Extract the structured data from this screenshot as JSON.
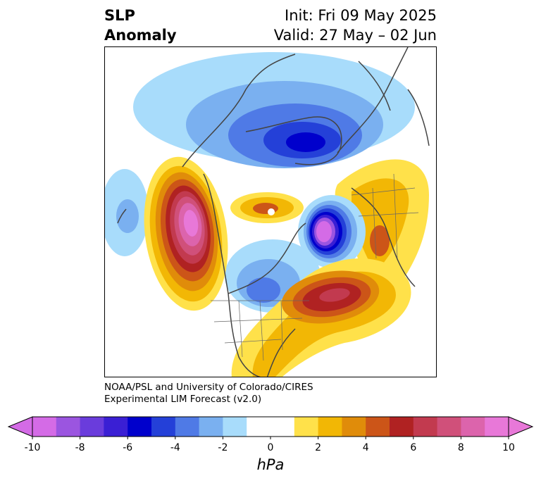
{
  "header": {
    "title_line1": "SLP",
    "title_line2": "Anomaly",
    "init_line": "Init: Fri 09 May 2025",
    "valid_line": "Valid: 27 May – 02 Jun"
  },
  "credit": {
    "line1": "NOAA/PSL and University of Colorado/CIRES",
    "line2": "Experimental LIM Forecast (v2.0)"
  },
  "colorbar": {
    "units": "hPa",
    "tick_labels": [
      "-10",
      "-8",
      "-6",
      "-4",
      "-2",
      "0",
      "2",
      "4",
      "6",
      "8",
      "10"
    ],
    "colors": [
      "#d46be6",
      "#9b55e0",
      "#6a3cdc",
      "#3a1fd4",
      "#0000cc",
      "#2440d8",
      "#4f7ae6",
      "#7ab0f0",
      "#a8dcfb",
      "#ffffff",
      "#ffffff",
      "#ffe14a",
      "#f2b705",
      "#e08c0a",
      "#cc5518",
      "#b02222",
      "#c23a4f",
      "#d0507a",
      "#dc64ac",
      "#e878d8"
    ],
    "under_color": "#d46be6",
    "over_color": "#e878d8"
  },
  "map": {
    "field": "Sea level pressure anomaly",
    "projection": "North polar stereographic"
  }
}
